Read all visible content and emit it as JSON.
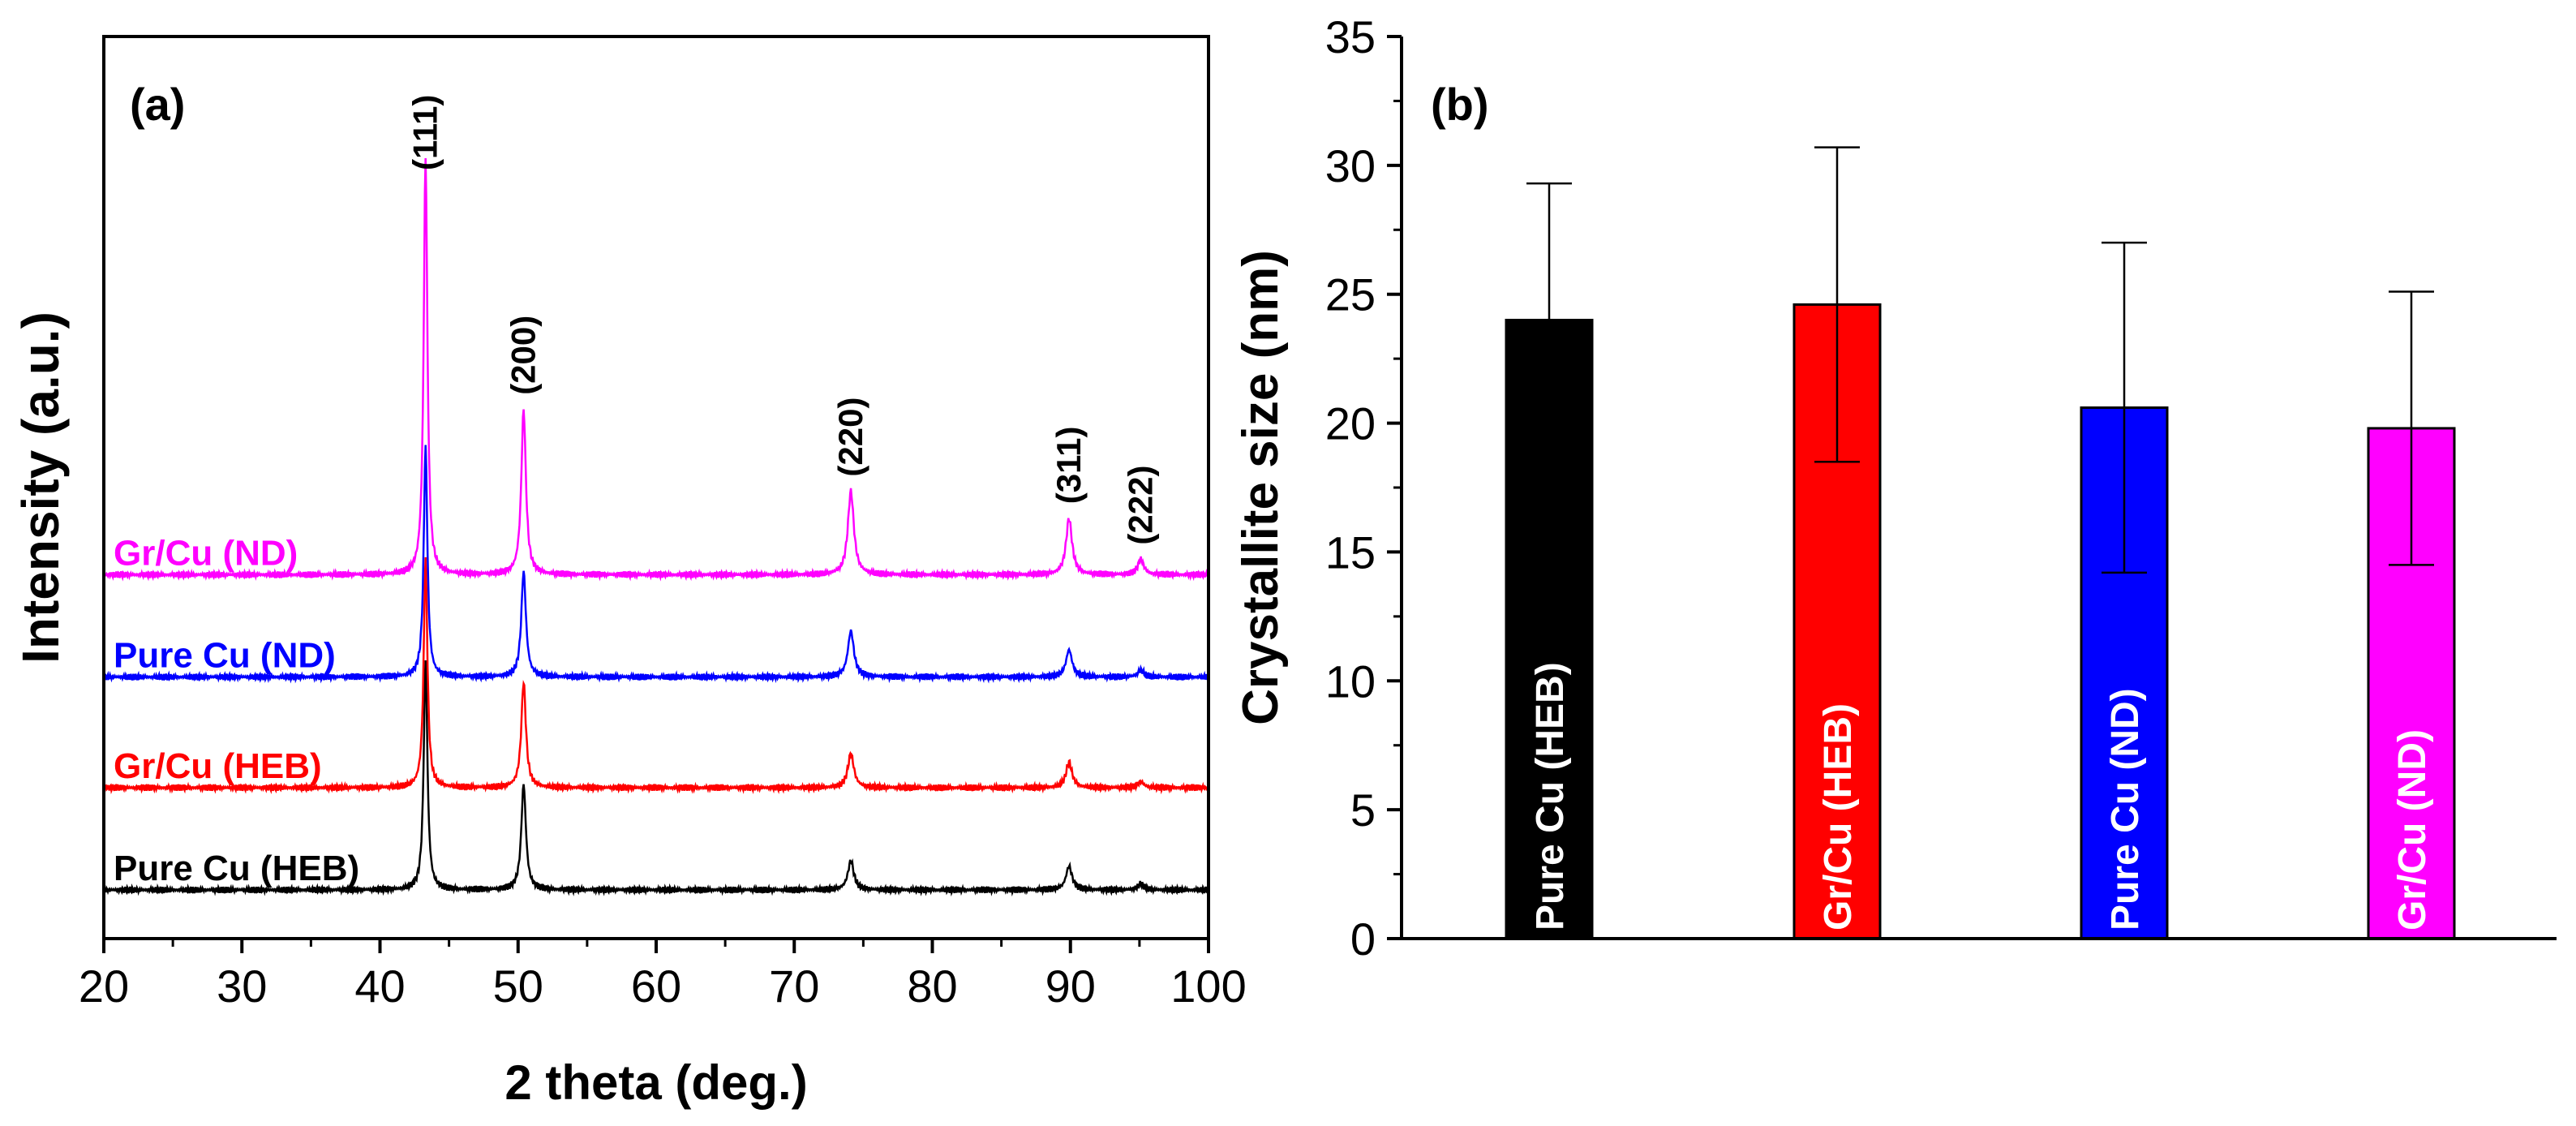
{
  "chart_data": [
    {
      "type": "line",
      "panel_label": "(a)",
      "xlabel": "2 theta (deg.)",
      "ylabel": "Intensity (a.u.)",
      "xlim": [
        20,
        100
      ],
      "xticks": [
        20,
        30,
        40,
        50,
        60,
        70,
        80,
        90,
        100
      ],
      "x_tick_labels": [
        "20",
        "30",
        "40",
        "50",
        "60",
        "70",
        "80",
        "90",
        "100"
      ],
      "y_ticks_shown": false,
      "peaks": [
        {
          "label": "(111)",
          "two_theta": 43.3
        },
        {
          "label": "(200)",
          "two_theta": 50.4
        },
        {
          "label": "(220)",
          "two_theta": 74.1
        },
        {
          "label": "(311)",
          "two_theta": 89.9
        },
        {
          "label": "(222)",
          "two_theta": 95.1
        }
      ],
      "series": [
        {
          "name": "Pure Cu (HEB)",
          "color": "#000000",
          "offset": 0,
          "heights": [
            1.35,
            0.62,
            0.17,
            0.14,
            0.035
          ]
        },
        {
          "name": "Gr/Cu (HEB)",
          "color": "#ff0000",
          "offset": 0.6,
          "heights": [
            1.35,
            0.62,
            0.2,
            0.15,
            0.035
          ]
        },
        {
          "name": "Pure Cu (ND)",
          "color": "#0000ff",
          "offset": 1.25,
          "heights": [
            1.35,
            0.62,
            0.27,
            0.16,
            0.04
          ]
        },
        {
          "name": "Gr/Cu (ND)",
          "color": "#ff00ff",
          "offset": 1.85,
          "heights": [
            2.45,
            0.97,
            0.49,
            0.33,
            0.09
          ]
        }
      ]
    },
    {
      "type": "bar",
      "panel_label": "(b)",
      "ylabel": "Crystallite size (nm)",
      "xlabel": "",
      "ylim": [
        0,
        35
      ],
      "yticks": [
        0,
        5,
        10,
        15,
        20,
        25,
        30,
        35
      ],
      "y_tick_labels": [
        "0",
        "5",
        "10",
        "15",
        "20",
        "25",
        "30",
        "35"
      ],
      "categories": [
        "Pure Cu (HEB)",
        "Gr/Cu (HEB)",
        "Pure Cu (ND)",
        "Gr/Cu (ND)"
      ],
      "values": [
        24.0,
        24.6,
        20.6,
        19.8
      ],
      "errors": [
        5.3,
        6.1,
        6.4,
        5.3
      ],
      "colors": [
        "#000000",
        "#ff0000",
        "#0000ff",
        "#ff00ff"
      ]
    }
  ]
}
